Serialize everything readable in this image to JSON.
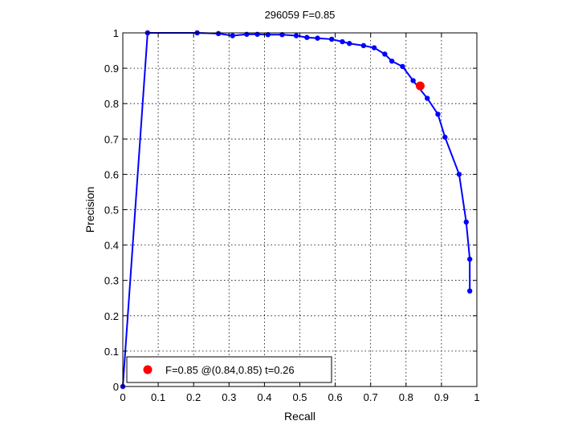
{
  "chart_data": {
    "type": "line",
    "title": "296059 F=0.85",
    "xlabel": "Recall",
    "ylabel": "Precision",
    "xlim": [
      0,
      1
    ],
    "ylim": [
      0,
      1
    ],
    "xticks": [
      "0",
      "0.1",
      "0.2",
      "0.3",
      "0.4",
      "0.5",
      "0.6",
      "0.7",
      "0.8",
      "0.9",
      "1"
    ],
    "yticks": [
      "0",
      "0.1",
      "0.2",
      "0.3",
      "0.4",
      "0.5",
      "0.6",
      "0.7",
      "0.8",
      "0.9",
      "1"
    ],
    "grid": true,
    "legend_position": "bottom-left",
    "series": [
      {
        "color": "#0000ff",
        "marker": "dot",
        "x": [
          0.0,
          0.07,
          0.21,
          0.27,
          0.31,
          0.35,
          0.38,
          0.41,
          0.45,
          0.49,
          0.52,
          0.55,
          0.59,
          0.62,
          0.64,
          0.68,
          0.71,
          0.74,
          0.76,
          0.79,
          0.82,
          0.86,
          0.89,
          0.91,
          0.95,
          0.97,
          0.98,
          0.98
        ],
        "y": [
          0.0,
          1.0,
          1.0,
          0.998,
          0.992,
          0.996,
          0.996,
          0.995,
          0.995,
          0.992,
          0.987,
          0.985,
          0.982,
          0.975,
          0.97,
          0.964,
          0.958,
          0.94,
          0.92,
          0.905,
          0.865,
          0.815,
          0.77,
          0.705,
          0.6,
          0.465,
          0.36,
          0.27
        ]
      }
    ],
    "best_point": {
      "x": 0.84,
      "y": 0.85,
      "color": "#ff0000"
    },
    "legend_label": "F=0.85 @(0.84,0.85) t=0.26"
  }
}
